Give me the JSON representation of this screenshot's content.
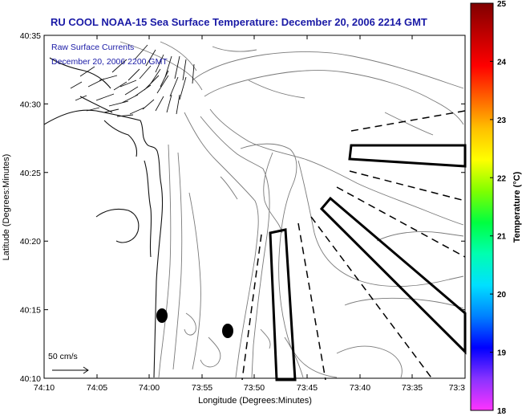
{
  "title": "RU COOL  NOAA-15  Sea Surface Temperature:  December 20, 2006 2214 GMT",
  "overlay": {
    "line1": "Raw Surface Currents",
    "line2": "December 20, 2006 2200 GMT"
  },
  "axes": {
    "xlabel": "Longitude (Degrees:Minutes)",
    "ylabel": "Latitude (Degrees:Minutes)",
    "x_ticks": [
      "74:10",
      "74:05",
      "74:00",
      "73:55",
      "73:50",
      "73:45",
      "73:40",
      "73:35",
      "73:3"
    ],
    "y_ticks": [
      "40:35",
      "40:30",
      "40:25",
      "40:20",
      "40:15",
      "40:10"
    ]
  },
  "scale_bar": {
    "label": "50 cm/s"
  },
  "colorbar": {
    "label": "Temperature (°C)",
    "ticks": [
      "25",
      "24",
      "23",
      "22",
      "21",
      "20",
      "19",
      "18"
    ],
    "range": [
      18,
      25
    ],
    "colors": [
      "#ff33ff",
      "#8a33ff",
      "#0000ff",
      "#0080ff",
      "#00e0ff",
      "#00ffb0",
      "#00ff40",
      "#80ff00",
      "#ffff00",
      "#ffc000",
      "#ff6000",
      "#ff0000",
      "#c00000",
      "#800000"
    ]
  }
}
